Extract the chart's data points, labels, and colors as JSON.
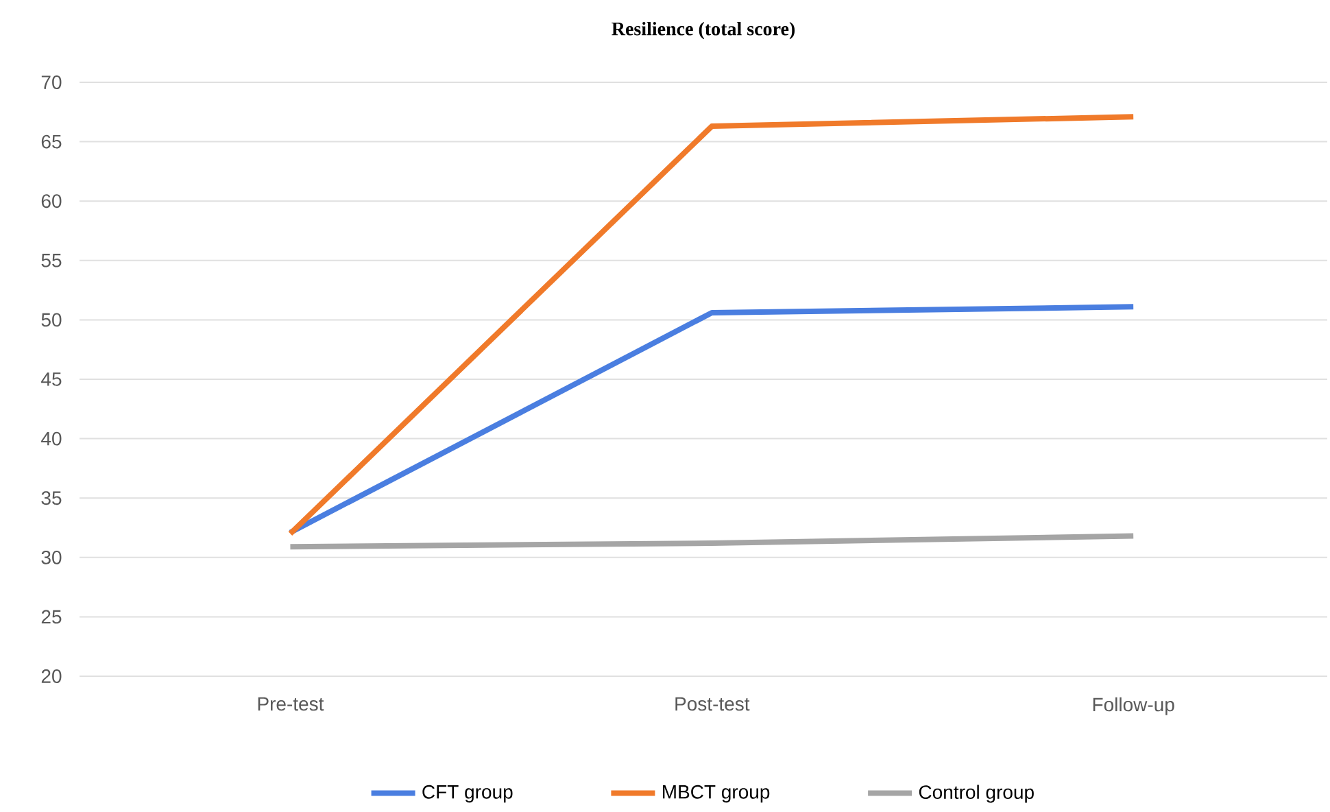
{
  "chart_data": {
    "type": "line",
    "title": "Resilience (total score)",
    "categories": [
      "Pre-test",
      "Post-test",
      "Follow-up"
    ],
    "series": [
      {
        "name": "CFT group",
        "color": "#4a7ee0",
        "values": [
          32.1,
          50.6,
          51.1
        ]
      },
      {
        "name": "MBCT group",
        "color": "#f07a2a",
        "values": [
          32.0,
          66.3,
          67.1
        ]
      },
      {
        "name": "Control group",
        "color": "#a5a5a5",
        "values": [
          30.9,
          31.2,
          31.8
        ]
      }
    ],
    "ylim": [
      20,
      70
    ],
    "yticks": [
      20,
      25,
      30,
      35,
      40,
      45,
      50,
      55,
      60,
      65,
      70
    ],
    "grid": "y",
    "legend": "bottom",
    "marker": "none",
    "line_style": "solid"
  }
}
